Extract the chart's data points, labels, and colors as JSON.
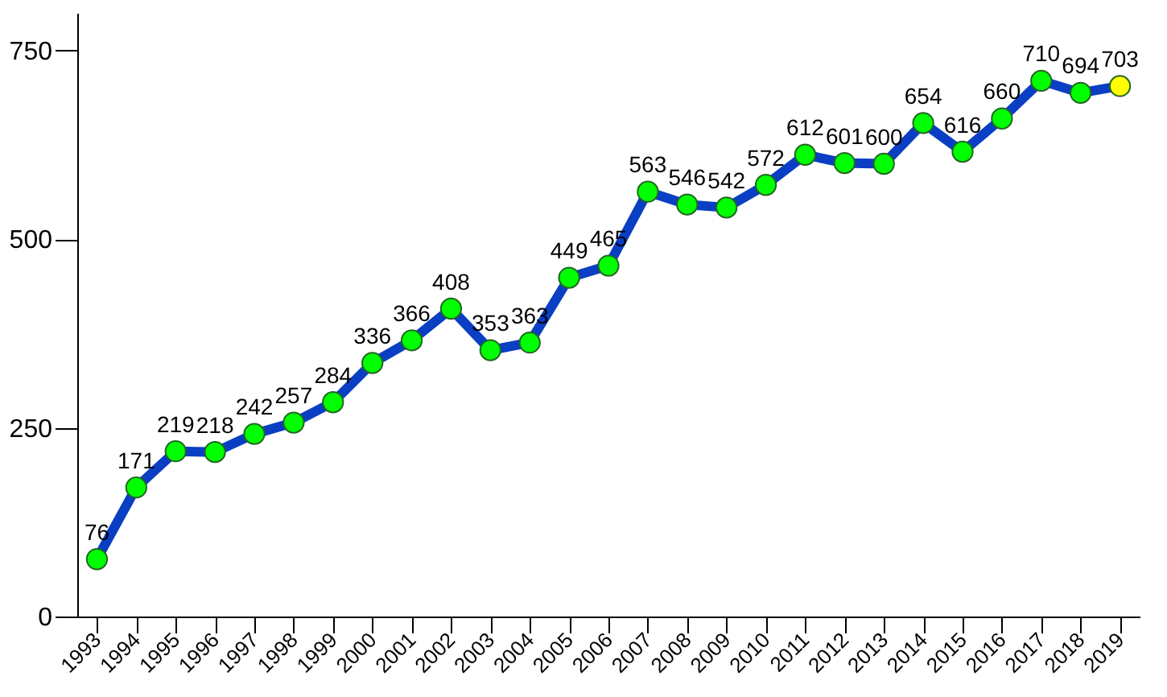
{
  "chart_data": {
    "type": "line",
    "categories": [
      "1993",
      "1994",
      "1995",
      "1996",
      "1997",
      "1998",
      "1999",
      "2000",
      "2001",
      "2002",
      "2003",
      "2004",
      "2005",
      "2006",
      "2007",
      "2008",
      "2009",
      "2010",
      "2011",
      "2012",
      "2013",
      "2014",
      "2015",
      "2016",
      "2017",
      "2018",
      "2019"
    ],
    "series": [
      {
        "color": "#0a3fc4",
        "values": [
          76,
          171,
          219,
          218,
          242,
          257,
          284,
          336,
          366,
          408,
          353,
          363,
          449,
          465,
          563,
          546,
          542,
          572,
          612,
          601,
          600,
          654,
          616,
          660,
          710,
          694,
          703
        ],
        "colors": [
          "#00ff00",
          "#00ff00",
          "#00ff00",
          "#00ff00",
          "#00ff00",
          "#00ff00",
          "#00ff00",
          "#00ff00",
          "#00ff00",
          "#00ff00",
          "#00ff00",
          "#00ff00",
          "#00ff00",
          "#00ff00",
          "#00ff00",
          "#00ff00",
          "#00ff00",
          "#00ff00",
          "#00ff00",
          "#00ff00",
          "#00ff00",
          "#00ff00",
          "#00ff00",
          "#00ff00",
          "#00ff00",
          "#00ff00",
          "#ffff00"
        ]
      }
    ],
    "ylim": [
      0,
      800
    ],
    "yticks": [
      0,
      250,
      500,
      750
    ],
    "grid": false,
    "marker": "circle",
    "line_style": "solid",
    "data_labels": true
  }
}
